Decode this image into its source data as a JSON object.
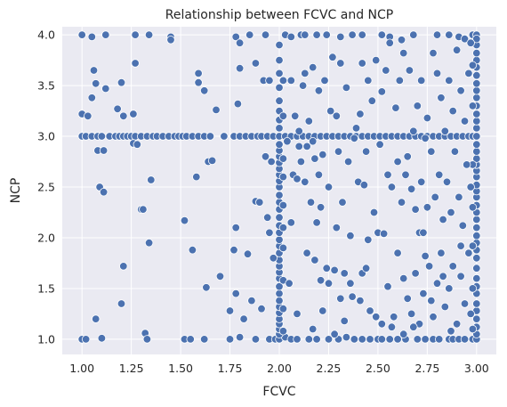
{
  "chart_data": {
    "type": "scatter",
    "title": "Relationship between FCVC and NCP",
    "xlabel": "FCVC",
    "ylabel": "NCP",
    "xlim": [
      0.9,
      3.1
    ],
    "ylim": [
      0.85,
      4.08
    ],
    "xticks": [
      "1.00",
      "1.25",
      "1.50",
      "1.75",
      "2.00",
      "2.25",
      "2.50",
      "2.75",
      "3.00"
    ],
    "yticks": [
      "1.0",
      "1.5",
      "2.0",
      "2.5",
      "3.0",
      "3.5",
      "4.0"
    ],
    "grid": true,
    "background_color": "#eaeaf2",
    "grid_color": "#ffffff",
    "point_color": "#4c72b0",
    "points": [
      [
        1.0,
        3.0
      ],
      [
        1.02,
        3.0
      ],
      [
        1.05,
        3.0
      ],
      [
        1.08,
        3.0
      ],
      [
        1.1,
        3.0
      ],
      [
        1.14,
        3.0
      ],
      [
        1.17,
        3.0
      ],
      [
        1.19,
        3.0
      ],
      [
        1.21,
        3.0
      ],
      [
        1.23,
        3.0
      ],
      [
        1.25,
        3.0
      ],
      [
        1.27,
        3.0
      ],
      [
        1.3,
        3.0
      ],
      [
        1.33,
        3.0
      ],
      [
        1.36,
        3.0
      ],
      [
        1.38,
        3.0
      ],
      [
        1.41,
        3.0
      ],
      [
        1.44,
        3.0
      ],
      [
        1.47,
        3.0
      ],
      [
        1.49,
        3.0
      ],
      [
        1.51,
        3.0
      ],
      [
        1.53,
        3.0
      ],
      [
        1.56,
        3.0
      ],
      [
        1.59,
        3.0
      ],
      [
        1.62,
        3.0
      ],
      [
        1.65,
        3.0
      ],
      [
        1.72,
        3.0
      ],
      [
        1.77,
        3.0
      ],
      [
        1.8,
        3.0
      ],
      [
        1.83,
        3.0
      ],
      [
        1.86,
        3.0
      ],
      [
        1.89,
        3.0
      ],
      [
        1.91,
        3.0
      ],
      [
        1.94,
        3.0
      ],
      [
        1.97,
        3.0
      ],
      [
        2.0,
        3.0
      ],
      [
        2.03,
        3.0
      ],
      [
        2.06,
        3.0
      ],
      [
        2.09,
        3.0
      ],
      [
        2.12,
        3.0
      ],
      [
        2.15,
        3.0
      ],
      [
        2.18,
        3.0
      ],
      [
        2.21,
        3.0
      ],
      [
        2.24,
        3.0
      ],
      [
        2.27,
        3.0
      ],
      [
        2.3,
        3.0
      ],
      [
        2.33,
        3.0
      ],
      [
        2.36,
        3.0
      ],
      [
        2.39,
        3.0
      ],
      [
        2.42,
        3.0
      ],
      [
        2.45,
        3.0
      ],
      [
        2.48,
        3.0
      ],
      [
        2.51,
        3.0
      ],
      [
        2.54,
        3.0
      ],
      [
        2.57,
        3.0
      ],
      [
        2.6,
        3.0
      ],
      [
        2.63,
        3.0
      ],
      [
        2.66,
        3.0
      ],
      [
        2.69,
        3.0
      ],
      [
        2.72,
        3.0
      ],
      [
        2.75,
        3.0
      ],
      [
        2.78,
        3.0
      ],
      [
        2.81,
        3.0
      ],
      [
        2.84,
        3.0
      ],
      [
        2.87,
        3.0
      ],
      [
        2.9,
        3.0
      ],
      [
        2.93,
        3.0
      ],
      [
        2.96,
        3.0
      ],
      [
        2.98,
        3.0
      ],
      [
        3.0,
        3.0
      ],
      [
        1.0,
        4.0
      ],
      [
        1.05,
        3.98
      ],
      [
        1.12,
        4.0
      ],
      [
        1.27,
        4.0
      ],
      [
        1.34,
        4.0
      ],
      [
        1.45,
        3.98
      ],
      [
        1.45,
        3.95
      ],
      [
        1.78,
        3.98
      ],
      [
        1.8,
        3.92
      ],
      [
        1.85,
        4.0
      ],
      [
        1.93,
        4.0
      ],
      [
        2.03,
        4.0
      ],
      [
        2.06,
        3.98
      ],
      [
        2.11,
        4.0
      ],
      [
        2.13,
        4.0
      ],
      [
        2.19,
        4.0
      ],
      [
        2.24,
        4.0
      ],
      [
        2.31,
        3.98
      ],
      [
        2.37,
        4.0
      ],
      [
        2.42,
        4.0
      ],
      [
        2.52,
        4.0
      ],
      [
        2.56,
        3.98
      ],
      [
        2.62,
        3.95
      ],
      [
        2.68,
        4.0
      ],
      [
        2.8,
        4.0
      ],
      [
        2.86,
        4.0
      ],
      [
        2.91,
        3.98
      ],
      [
        2.94,
        3.96
      ],
      [
        2.98,
        4.0
      ],
      [
        3.0,
        4.0
      ],
      [
        1.0,
        1.0
      ],
      [
        1.02,
        1.0
      ],
      [
        1.1,
        1.01
      ],
      [
        1.32,
        1.06
      ],
      [
        1.33,
        1.0
      ],
      [
        1.52,
        1.0
      ],
      [
        1.55,
        1.0
      ],
      [
        1.62,
        1.0
      ],
      [
        1.75,
        1.0
      ],
      [
        1.8,
        1.02
      ],
      [
        1.88,
        1.0
      ],
      [
        1.95,
        1.0
      ],
      [
        1.98,
        1.0
      ],
      [
        2.0,
        1.0
      ],
      [
        2.03,
        1.02
      ],
      [
        2.06,
        1.0
      ],
      [
        2.09,
        1.0
      ],
      [
        2.15,
        1.0
      ],
      [
        2.19,
        1.0
      ],
      [
        2.25,
        1.0
      ],
      [
        2.3,
        1.0
      ],
      [
        2.34,
        1.02
      ],
      [
        2.38,
        1.0
      ],
      [
        2.42,
        1.0
      ],
      [
        2.46,
        1.0
      ],
      [
        2.5,
        1.0
      ],
      [
        2.52,
        1.0
      ],
      [
        2.56,
        1.0
      ],
      [
        2.6,
        1.0
      ],
      [
        2.64,
        1.0
      ],
      [
        2.7,
        1.0
      ],
      [
        2.74,
        1.0
      ],
      [
        2.78,
        1.0
      ],
      [
        2.81,
        1.0
      ],
      [
        2.86,
        1.0
      ],
      [
        2.88,
        1.0
      ],
      [
        2.91,
        1.0
      ],
      [
        2.94,
        1.0
      ],
      [
        2.98,
        1.0
      ],
      [
        3.0,
        1.0
      ],
      [
        2.0,
        1.05
      ],
      [
        2.0,
        1.1
      ],
      [
        2.0,
        1.15
      ],
      [
        2.0,
        1.2
      ],
      [
        2.0,
        1.26
      ],
      [
        2.0,
        1.32
      ],
      [
        2.0,
        1.38
      ],
      [
        2.0,
        1.45
      ],
      [
        2.0,
        1.52
      ],
      [
        2.0,
        1.6
      ],
      [
        2.0,
        1.66
      ],
      [
        2.0,
        1.72
      ],
      [
        2.0,
        1.78
      ],
      [
        2.0,
        1.85
      ],
      [
        2.0,
        1.92
      ],
      [
        2.0,
        1.98
      ],
      [
        2.0,
        2.05
      ],
      [
        2.0,
        2.12
      ],
      [
        2.0,
        2.2
      ],
      [
        2.0,
        2.28
      ],
      [
        2.0,
        2.35
      ],
      [
        2.0,
        2.42
      ],
      [
        2.0,
        2.5
      ],
      [
        2.0,
        2.56
      ],
      [
        2.0,
        2.62
      ],
      [
        2.0,
        2.68
      ],
      [
        2.0,
        2.74
      ],
      [
        2.0,
        2.8
      ],
      [
        2.0,
        2.86
      ],
      [
        2.0,
        2.92
      ],
      [
        2.0,
        3.08
      ],
      [
        2.0,
        3.16
      ],
      [
        2.0,
        3.25
      ],
      [
        2.0,
        3.35
      ],
      [
        2.0,
        3.48
      ],
      [
        2.0,
        3.62
      ],
      [
        2.0,
        3.75
      ],
      [
        2.0,
        3.9
      ],
      [
        2.02,
        1.08
      ],
      [
        2.02,
        1.3
      ],
      [
        2.02,
        1.58
      ],
      [
        2.02,
        1.9
      ],
      [
        2.02,
        2.1
      ],
      [
        2.02,
        2.32
      ],
      [
        2.02,
        2.6
      ],
      [
        2.02,
        2.78
      ],
      [
        2.02,
        3.2
      ],
      [
        2.02,
        3.55
      ],
      [
        3.0,
        1.05
      ],
      [
        3.0,
        1.12
      ],
      [
        3.0,
        1.2
      ],
      [
        3.0,
        1.28
      ],
      [
        3.0,
        1.35
      ],
      [
        3.0,
        1.45
      ],
      [
        3.0,
        1.52
      ],
      [
        3.0,
        1.6
      ],
      [
        3.0,
        1.7
      ],
      [
        3.0,
        1.8
      ],
      [
        3.0,
        1.88
      ],
      [
        3.0,
        1.95
      ],
      [
        3.0,
        2.02
      ],
      [
        3.0,
        2.1
      ],
      [
        3.0,
        2.18
      ],
      [
        3.0,
        2.25
      ],
      [
        3.0,
        2.32
      ],
      [
        3.0,
        2.4
      ],
      [
        3.0,
        2.46
      ],
      [
        3.0,
        2.52
      ],
      [
        3.0,
        2.6
      ],
      [
        3.0,
        2.66
      ],
      [
        3.0,
        2.72
      ],
      [
        3.0,
        2.78
      ],
      [
        3.0,
        2.85
      ],
      [
        3.0,
        2.92
      ],
      [
        3.0,
        3.08
      ],
      [
        3.0,
        3.15
      ],
      [
        3.0,
        3.22
      ],
      [
        3.0,
        3.3
      ],
      [
        3.0,
        3.38
      ],
      [
        3.0,
        3.45
      ],
      [
        3.0,
        3.52
      ],
      [
        3.0,
        3.6
      ],
      [
        3.0,
        3.68
      ],
      [
        3.0,
        3.75
      ],
      [
        3.0,
        3.82
      ],
      [
        3.0,
        3.9
      ],
      [
        3.0,
        3.96
      ],
      [
        2.98,
        1.1
      ],
      [
        2.98,
        1.5
      ],
      [
        2.98,
        1.92
      ],
      [
        2.98,
        2.3
      ],
      [
        2.98,
        2.72
      ],
      [
        2.98,
        3.3
      ],
      [
        2.98,
        3.7
      ],
      [
        1.0,
        3.22
      ],
      [
        1.03,
        3.2
      ],
      [
        1.05,
        3.38
      ],
      [
        1.07,
        3.52
      ],
      [
        1.06,
        3.65
      ],
      [
        1.12,
        3.47
      ],
      [
        1.18,
        3.27
      ],
      [
        1.2,
        3.53
      ],
      [
        1.21,
        3.2
      ],
      [
        1.26,
        3.22
      ],
      [
        1.27,
        3.72
      ],
      [
        1.26,
        2.93
      ],
      [
        1.28,
        2.92
      ],
      [
        1.08,
        2.86
      ],
      [
        1.11,
        2.86
      ],
      [
        1.09,
        2.5
      ],
      [
        1.11,
        2.45
      ],
      [
        1.3,
        2.28
      ],
      [
        1.31,
        2.28
      ],
      [
        1.35,
        2.57
      ],
      [
        1.34,
        1.95
      ],
      [
        1.21,
        1.72
      ],
      [
        1.2,
        1.35
      ],
      [
        1.07,
        1.2
      ],
      [
        1.52,
        2.17
      ],
      [
        1.56,
        1.88
      ],
      [
        1.58,
        2.6
      ],
      [
        1.59,
        3.53
      ],
      [
        1.59,
        3.62
      ],
      [
        1.62,
        3.45
      ],
      [
        1.64,
        2.75
      ],
      [
        1.66,
        2.76
      ],
      [
        1.68,
        3.26
      ],
      [
        1.63,
        1.51
      ],
      [
        1.7,
        1.62
      ],
      [
        1.75,
        1.28
      ],
      [
        1.77,
        1.88
      ],
      [
        1.78,
        2.1
      ],
      [
        1.78,
        1.45
      ],
      [
        1.79,
        3.32
      ],
      [
        1.8,
        3.67
      ],
      [
        1.82,
        1.2
      ],
      [
        1.84,
        1.84
      ],
      [
        1.86,
        1.38
      ],
      [
        1.88,
        2.36
      ],
      [
        1.88,
        3.72
      ],
      [
        1.9,
        2.35
      ],
      [
        1.91,
        1.3
      ],
      [
        1.92,
        3.55
      ],
      [
        1.94,
        2.2
      ],
      [
        1.95,
        2.05
      ],
      [
        1.95,
        3.55
      ],
      [
        1.96,
        2.75
      ],
      [
        1.97,
        1.8
      ],
      [
        1.93,
        2.8
      ],
      [
        2.04,
        2.95
      ],
      [
        2.06,
        3.55
      ],
      [
        2.07,
        2.62
      ],
      [
        2.08,
        3.2
      ],
      [
        2.09,
        2.58
      ],
      [
        2.1,
        2.9
      ],
      [
        2.1,
        3.05
      ],
      [
        2.11,
        2.75
      ],
      [
        2.12,
        3.5
      ],
      [
        2.13,
        3.62
      ],
      [
        2.13,
        2.55
      ],
      [
        2.14,
        2.9
      ],
      [
        2.15,
        3.15
      ],
      [
        2.16,
        2.35
      ],
      [
        2.17,
        2.95
      ],
      [
        2.17,
        3.68
      ],
      [
        2.18,
        2.78
      ],
      [
        2.18,
        1.78
      ],
      [
        2.19,
        2.15
      ],
      [
        2.2,
        2.62
      ],
      [
        2.2,
        3.45
      ],
      [
        2.21,
        2.3
      ],
      [
        2.22,
        1.28
      ],
      [
        2.22,
        2.82
      ],
      [
        2.23,
        3.55
      ],
      [
        2.24,
        1.7
      ],
      [
        2.25,
        2.5
      ],
      [
        2.25,
        1.55
      ],
      [
        2.26,
        3.25
      ],
      [
        2.27,
        3.78
      ],
      [
        2.28,
        1.68
      ],
      [
        2.29,
        3.2
      ],
      [
        2.29,
        2.1
      ],
      [
        2.3,
        2.85
      ],
      [
        2.31,
        3.72
      ],
      [
        2.31,
        1.4
      ],
      [
        2.32,
        2.35
      ],
      [
        2.33,
        1.65
      ],
      [
        2.33,
        1.18
      ],
      [
        2.34,
        3.48
      ],
      [
        2.35,
        2.75
      ],
      [
        2.36,
        2.02
      ],
      [
        2.37,
        1.42
      ],
      [
        2.38,
        2.98
      ],
      [
        2.39,
        3.08
      ],
      [
        2.4,
        2.55
      ],
      [
        2.41,
        3.22
      ],
      [
        2.42,
        1.65
      ],
      [
        2.42,
        3.72
      ],
      [
        2.43,
        2.52
      ],
      [
        2.44,
        2.85
      ],
      [
        2.45,
        1.98
      ],
      [
        2.45,
        3.55
      ],
      [
        2.46,
        1.28
      ],
      [
        2.47,
        3.35
      ],
      [
        2.48,
        2.25
      ],
      [
        2.49,
        3.75
      ],
      [
        2.5,
        2.05
      ],
      [
        2.51,
        2.92
      ],
      [
        2.52,
        3.44
      ],
      [
        2.52,
        1.15
      ],
      [
        2.53,
        2.04
      ],
      [
        2.54,
        3.65
      ],
      [
        2.55,
        1.52
      ],
      [
        2.55,
        2.62
      ],
      [
        2.56,
        3.92
      ],
      [
        2.57,
        2.5
      ],
      [
        2.58,
        1.22
      ],
      [
        2.59,
        3.28
      ],
      [
        2.6,
        2.75
      ],
      [
        2.6,
        1.85
      ],
      [
        2.61,
        3.55
      ],
      [
        2.62,
        2.35
      ],
      [
        2.63,
        3.82
      ],
      [
        2.63,
        1.05
      ],
      [
        2.64,
        2.62
      ],
      [
        2.65,
        2.8
      ],
      [
        2.65,
        1.4
      ],
      [
        2.66,
        3.65
      ],
      [
        2.67,
        2.48
      ],
      [
        2.67,
        1.25
      ],
      [
        2.68,
        3.05
      ],
      [
        2.69,
        2.28
      ],
      [
        2.69,
        1.65
      ],
      [
        2.7,
        3.3
      ],
      [
        2.71,
        1.15
      ],
      [
        2.71,
        2.05
      ],
      [
        2.72,
        3.55
      ],
      [
        2.72,
        2.55
      ],
      [
        2.73,
        1.45
      ],
      [
        2.74,
        2.98
      ],
      [
        2.74,
        1.82
      ],
      [
        2.75,
        3.18
      ],
      [
        2.75,
        2.3
      ],
      [
        2.76,
        1.72
      ],
      [
        2.77,
        2.85
      ],
      [
        2.78,
        3.82
      ],
      [
        2.78,
        1.22
      ],
      [
        2.79,
        2.4
      ],
      [
        2.8,
        3.62
      ],
      [
        2.8,
        1.55
      ],
      [
        2.81,
        2.62
      ],
      [
        2.82,
        3.38
      ],
      [
        2.82,
        1.85
      ],
      [
        2.83,
        2.18
      ],
      [
        2.84,
        3.05
      ],
      [
        2.84,
        1.32
      ],
      [
        2.85,
        2.55
      ],
      [
        2.86,
        3.55
      ],
      [
        2.86,
        1.5
      ],
      [
        2.87,
        2.25
      ],
      [
        2.88,
        3.25
      ],
      [
        2.88,
        1.72
      ],
      [
        2.89,
        2.85
      ],
      [
        2.9,
        3.85
      ],
      [
        2.9,
        1.15
      ],
      [
        2.91,
        2.4
      ],
      [
        2.92,
        3.45
      ],
      [
        2.92,
        1.62
      ],
      [
        2.93,
        2.12
      ],
      [
        2.94,
        3.15
      ],
      [
        2.94,
        1.35
      ],
      [
        2.95,
        2.72
      ],
      [
        2.96,
        3.62
      ],
      [
        2.96,
        1.85
      ],
      [
        2.97,
        2.5
      ],
      [
        2.97,
        3.92
      ],
      [
        2.97,
        1.25
      ],
      [
        2.05,
        1.55
      ],
      [
        2.06,
        2.15
      ],
      [
        2.09,
        1.25
      ],
      [
        2.14,
        1.85
      ],
      [
        2.17,
        1.1
      ],
      [
        2.21,
        1.58
      ],
      [
        2.28,
        1.05
      ],
      [
        2.36,
        1.55
      ],
      [
        2.41,
        1.38
      ],
      [
        2.44,
        1.7
      ],
      [
        2.49,
        1.22
      ],
      [
        2.57,
        1.12
      ],
      [
        2.63,
        1.6
      ],
      [
        2.68,
        1.12
      ],
      [
        2.73,
        2.05
      ],
      [
        2.77,
        1.38
      ],
      [
        2.83,
        1.62
      ],
      [
        2.87,
        1.08
      ],
      [
        2.92,
        1.92
      ]
    ]
  }
}
